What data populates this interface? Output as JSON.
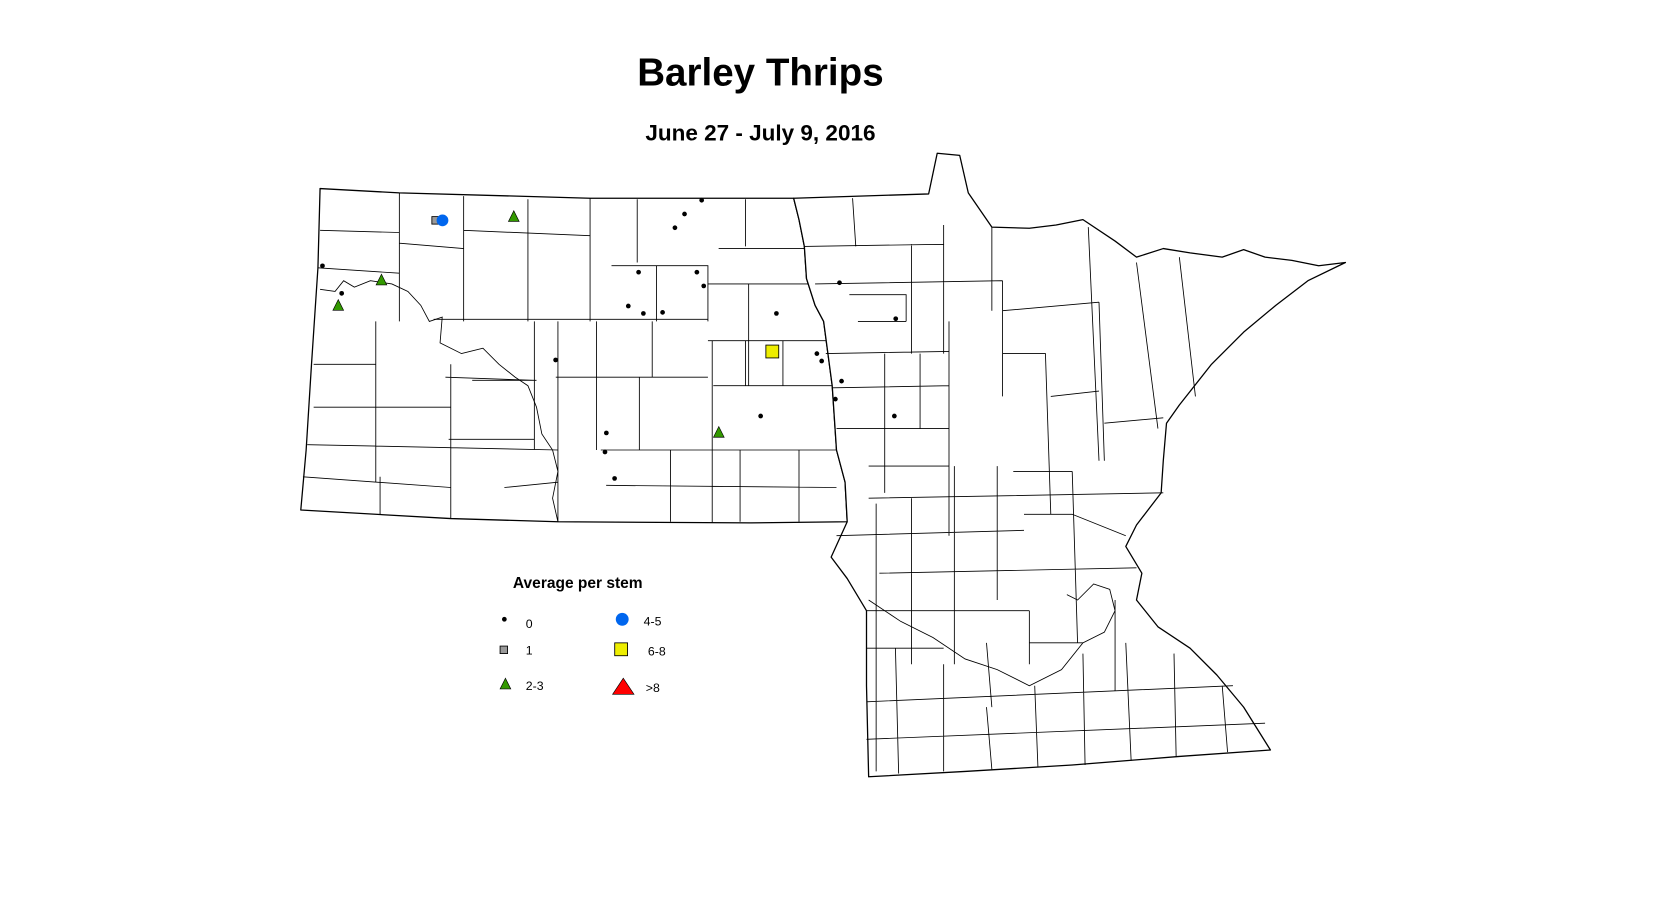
{
  "title": "Barley Thrips",
  "subtitle": "June 27 - July 9, 2016",
  "legend": {
    "title": "Average per stem",
    "items": [
      {
        "label": "0",
        "symbol": "dot",
        "color": "#000000"
      },
      {
        "label": "1",
        "symbol": "square",
        "color": "#999999"
      },
      {
        "label": "2-3",
        "symbol": "triangle",
        "color": "#339900"
      },
      {
        "label": "4-5",
        "symbol": "circle",
        "color": "#0066ee"
      },
      {
        "label": "6-8",
        "symbol": "square",
        "color": "#eeee00"
      },
      {
        "label": ">8",
        "symbol": "triangle",
        "color": "#ff0000"
      }
    ]
  },
  "map_data": {
    "regions": [
      "North Dakota",
      "Minnesota"
    ],
    "boundaries": "county",
    "points": [
      {
        "lon": -98.36,
        "lat": 48.93,
        "class": "0"
      },
      {
        "lon": -98.61,
        "lat": 48.8,
        "class": "0"
      },
      {
        "lon": -98.75,
        "lat": 48.67,
        "class": "0"
      },
      {
        "lon": -103.89,
        "lat": 48.31,
        "class": "0"
      },
      {
        "lon": -103.61,
        "lat": 48.05,
        "class": "0"
      },
      {
        "lon": -99.28,
        "lat": 48.25,
        "class": "0"
      },
      {
        "lon": -98.43,
        "lat": 48.25,
        "class": "0"
      },
      {
        "lon": -98.33,
        "lat": 48.12,
        "class": "0"
      },
      {
        "lon": -99.43,
        "lat": 47.93,
        "class": "0"
      },
      {
        "lon": -99.21,
        "lat": 47.86,
        "class": "0"
      },
      {
        "lon": -98.93,
        "lat": 47.87,
        "class": "0"
      },
      {
        "lon": -96.35,
        "lat": 48.15,
        "class": "0"
      },
      {
        "lon": -95.53,
        "lat": 47.81,
        "class": "0"
      },
      {
        "lon": -97.27,
        "lat": 47.86,
        "class": "0"
      },
      {
        "lon": -96.68,
        "lat": 47.48,
        "class": "0"
      },
      {
        "lon": -96.61,
        "lat": 47.41,
        "class": "0"
      },
      {
        "lon": -96.32,
        "lat": 47.22,
        "class": "0"
      },
      {
        "lon": -96.41,
        "lat": 47.05,
        "class": "0"
      },
      {
        "lon": -100.49,
        "lat": 47.42,
        "class": "0"
      },
      {
        "lon": -97.5,
        "lat": 46.89,
        "class": "0"
      },
      {
        "lon": -95.55,
        "lat": 46.89,
        "class": "0"
      },
      {
        "lon": -99.75,
        "lat": 46.73,
        "class": "0"
      },
      {
        "lon": -99.77,
        "lat": 46.55,
        "class": "0"
      },
      {
        "lon": -99.63,
        "lat": 46.3,
        "class": "0"
      },
      {
        "lon": -102.24,
        "lat": 48.74,
        "class": "1"
      },
      {
        "lon": -102.14,
        "lat": 48.74,
        "class": "4-5"
      },
      {
        "lon": -101.1,
        "lat": 48.78,
        "class": "2-3"
      },
      {
        "lon": -103.03,
        "lat": 48.18,
        "class": "2-3"
      },
      {
        "lon": -103.66,
        "lat": 47.94,
        "class": "2-3"
      },
      {
        "lon": -98.11,
        "lat": 46.74,
        "class": "2-3"
      },
      {
        "lon": -97.33,
        "lat": 47.5,
        "class": "6-8"
      }
    ]
  }
}
